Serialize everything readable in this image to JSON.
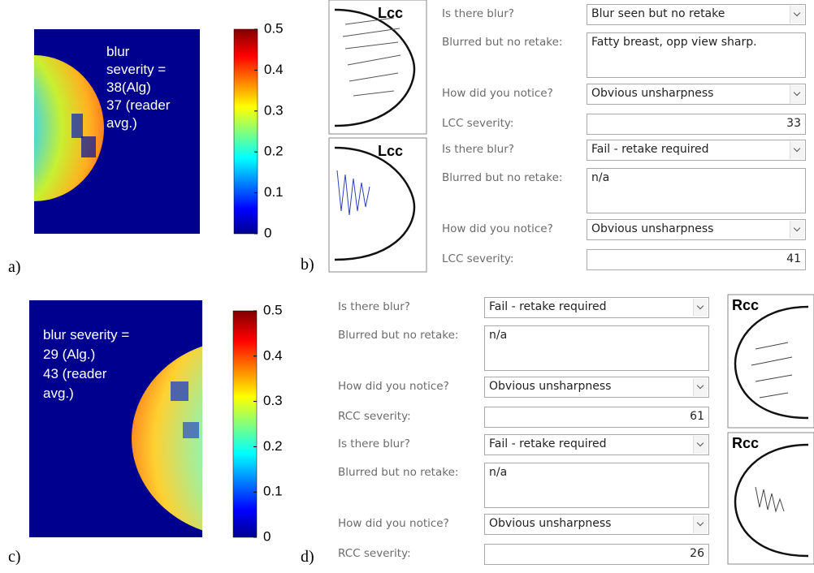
{
  "panels": {
    "a": {
      "label": "a)",
      "annotation": [
        "blur",
        "severity =",
        "38(Alg)",
        "37 (reader",
        "avg.)"
      ],
      "colorbar": {
        "range": [
          0,
          0.5
        ],
        "ticks": [
          0,
          0.1,
          0.2,
          0.3,
          0.4,
          0.5
        ]
      }
    },
    "b": {
      "label": "b)",
      "views": [
        {
          "image_label": "Lcc",
          "fields": {
            "blur_question": "Is there blur?",
            "blur_answer": "Blur seen but no retake",
            "comment_label": "Blurred but no retake:",
            "comment": "Fatty breast, opp view sharp.",
            "notice_question": "How did you notice?",
            "notice_answer": "Obvious unsharpness",
            "severity_label": "LCC severity:",
            "severity": 33
          }
        },
        {
          "image_label": "Lcc",
          "fields": {
            "blur_question": "Is there blur?",
            "blur_answer": "Fail - retake required",
            "comment_label": "Blurred but no retake:",
            "comment": "n/a",
            "notice_question": "How did you notice?",
            "notice_answer": "Obvious unsharpness",
            "severity_label": "LCC severity:",
            "severity": 41
          }
        }
      ]
    },
    "c": {
      "label": "c)",
      "annotation": [
        "blur severity =",
        "29 (Alg.)",
        "43 (reader",
        "avg.)"
      ],
      "colorbar": {
        "range": [
          0,
          0.5
        ],
        "ticks": [
          0,
          0.1,
          0.2,
          0.3,
          0.4,
          0.5
        ]
      }
    },
    "d": {
      "label": "d)",
      "views": [
        {
          "image_label": "Rcc",
          "fields": {
            "blur_question": "Is there blur?",
            "blur_answer": "Fail - retake required",
            "comment_label": "Blurred but no retake:",
            "comment": "n/a",
            "notice_question": "How did you notice?",
            "notice_answer": "Obvious unsharpness",
            "severity_label": "RCC severity:",
            "severity": 61
          }
        },
        {
          "image_label": "Rcc",
          "fields": {
            "blur_question": "Is there blur?",
            "blur_answer": "Fail - retake required",
            "comment_label": "Blurred but no retake:",
            "comment": "n/a",
            "notice_question": "How did you notice?",
            "notice_answer": "Obvious unsharpness",
            "severity_label": "RCC severity:",
            "severity": 26
          }
        }
      ]
    }
  }
}
